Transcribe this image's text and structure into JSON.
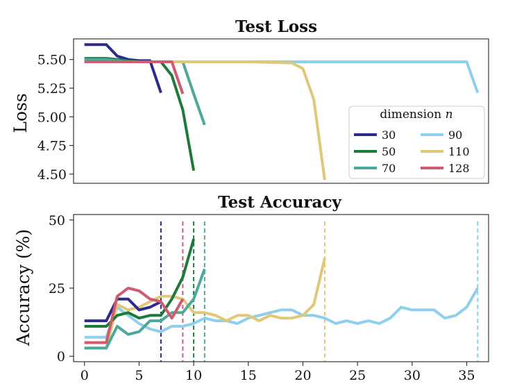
{
  "chart_data": [
    {
      "type": "line",
      "title": "Test Loss",
      "ylabel": "Loss",
      "xlabel": "",
      "xlim": [
        -1,
        37
      ],
      "ylim": [
        4.42,
        5.68
      ],
      "yticks": [
        5.5,
        5.25,
        5.0,
        4.75,
        4.5
      ],
      "ytick_labels": [
        "5.50",
        "5.25",
        "5.00",
        "4.75",
        "4.50"
      ],
      "grid": false,
      "legend": {
        "title": "dimension n",
        "title_text": "dimension ",
        "title_var": "n",
        "placement": "lower-right",
        "columns": 2
      },
      "series": [
        {
          "name": "30",
          "color": "#2e2a8c",
          "x": [
            0,
            1,
            2,
            3,
            4,
            5,
            6,
            7
          ],
          "y": [
            5.63,
            5.63,
            5.63,
            5.53,
            5.5,
            5.49,
            5.49,
            5.21
          ]
        },
        {
          "name": "50",
          "color": "#1e7a3a",
          "x": [
            0,
            1,
            2,
            3,
            4,
            5,
            6,
            7,
            8,
            9,
            10
          ],
          "y": [
            5.51,
            5.51,
            5.51,
            5.5,
            5.49,
            5.48,
            5.48,
            5.48,
            5.36,
            5.06,
            4.53
          ]
        },
        {
          "name": "70",
          "color": "#4aa99a",
          "x": [
            0,
            1,
            2,
            3,
            4,
            5,
            6,
            7,
            8,
            9,
            10,
            11
          ],
          "y": [
            5.5,
            5.5,
            5.5,
            5.49,
            5.48,
            5.48,
            5.48,
            5.48,
            5.48,
            5.48,
            5.2,
            4.93
          ]
        },
        {
          "name": "90",
          "color": "#8ecfee",
          "x": [
            0,
            5,
            10,
            15,
            20,
            25,
            30,
            35,
            36
          ],
          "y": [
            5.48,
            5.48,
            5.48,
            5.48,
            5.48,
            5.48,
            5.48,
            5.48,
            5.21
          ]
        },
        {
          "name": "110",
          "color": "#e0c878",
          "x": [
            0,
            5,
            10,
            15,
            19,
            20,
            21,
            22
          ],
          "y": [
            5.48,
            5.48,
            5.48,
            5.48,
            5.47,
            5.42,
            5.15,
            4.45
          ]
        },
        {
          "name": "128",
          "color": "#d05a6e",
          "x": [
            0,
            1,
            2,
            3,
            4,
            5,
            6,
            7,
            8,
            9
          ],
          "y": [
            5.48,
            5.48,
            5.48,
            5.48,
            5.48,
            5.48,
            5.48,
            5.48,
            5.48,
            5.2
          ]
        }
      ]
    },
    {
      "type": "line",
      "title": "Test Accuracy",
      "ylabel": "Accuracy (%)",
      "xlabel": "",
      "xlim": [
        -1,
        37
      ],
      "ylim": [
        -2,
        52
      ],
      "yticks": [
        50,
        25,
        0
      ],
      "ytick_labels": [
        "50",
        "25",
        "0"
      ],
      "xticks": [
        0,
        5,
        10,
        15,
        20,
        25,
        30,
        35
      ],
      "xtick_labels": [
        "0",
        "5",
        "10",
        "15",
        "20",
        "25",
        "30",
        "35"
      ],
      "grid": false,
      "vlines": [
        {
          "x": 7,
          "series": "30"
        },
        {
          "x": 9,
          "series": "128"
        },
        {
          "x": 10,
          "series": "50"
        },
        {
          "x": 11,
          "series": "70"
        },
        {
          "x": 22,
          "series": "110"
        },
        {
          "x": 36,
          "series": "90"
        }
      ],
      "series": [
        {
          "name": "30",
          "x": [
            0,
            1,
            2,
            3,
            4,
            5,
            6,
            7
          ],
          "y": [
            13,
            13,
            13,
            21,
            21,
            17,
            18,
            20
          ]
        },
        {
          "name": "50",
          "x": [
            0,
            1,
            2,
            3,
            4,
            5,
            6,
            7,
            8,
            9,
            10
          ],
          "y": [
            11,
            11,
            11,
            15,
            16,
            14,
            15,
            15,
            21,
            29,
            43
          ]
        },
        {
          "name": "70",
          "x": [
            0,
            1,
            2,
            3,
            4,
            5,
            6,
            7,
            8,
            9,
            10,
            11
          ],
          "y": [
            3,
            3,
            3,
            11,
            8,
            9,
            13,
            13,
            16,
            16,
            21,
            32
          ]
        },
        {
          "name": "90",
          "x": [
            0,
            1,
            2,
            3,
            4,
            5,
            6,
            7,
            8,
            9,
            10,
            11,
            12,
            13,
            14,
            15,
            16,
            17,
            18,
            19,
            20,
            21,
            22,
            23,
            24,
            25,
            26,
            27,
            28,
            29,
            30,
            31,
            32,
            33,
            34,
            35,
            36
          ],
          "y": [
            7,
            7,
            7,
            18,
            15,
            12,
            10,
            9,
            11,
            11,
            12,
            14,
            13,
            13,
            12,
            14,
            15,
            16,
            17,
            17,
            15,
            15,
            14,
            12,
            13,
            12,
            13,
            12,
            14,
            18,
            17,
            17,
            17,
            14,
            15,
            18,
            25
          ]
        },
        {
          "name": "110",
          "x": [
            0,
            1,
            2,
            3,
            4,
            5,
            6,
            7,
            8,
            9,
            10,
            11,
            12,
            13,
            14,
            15,
            16,
            17,
            18,
            19,
            20,
            21,
            22
          ],
          "y": [
            3,
            3,
            3,
            19,
            17,
            18,
            20,
            22,
            22,
            21,
            16,
            16,
            15,
            13,
            15,
            15,
            13,
            15,
            14,
            14,
            15,
            19,
            36
          ]
        },
        {
          "name": "128",
          "x": [
            0,
            1,
            2,
            3,
            4,
            5,
            6,
            7,
            8,
            9
          ],
          "y": [
            5,
            5,
            5,
            22,
            25,
            24,
            21,
            20,
            14,
            21
          ]
        }
      ]
    }
  ]
}
